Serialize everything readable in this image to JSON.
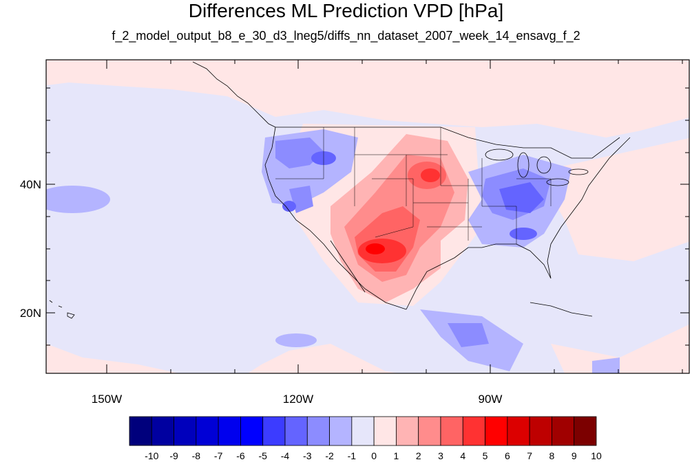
{
  "title": "Differences ML Prediction VPD [hPa]",
  "subtitle": "f_2_model_output_b8_e_30_d3_lneg5/diffs_nn_dataset_2007_week_14_ensavg_f_2",
  "map": {
    "lat_ticks": [
      "40N",
      "20N"
    ],
    "lon_ticks": [
      "150W",
      "120W",
      "90W"
    ],
    "background_color": "#e6e6fa",
    "extent": {
      "lon_min": -159.5,
      "lon_max": -61,
      "lat_min": 10,
      "lat_max": 59
    }
  },
  "colorbar": {
    "labels": [
      "-10",
      "-9",
      "-8",
      "-7",
      "-6",
      "-5",
      "-4",
      "-3",
      "-2",
      "-1",
      "0",
      "1",
      "2",
      "3",
      "4",
      "5",
      "6",
      "7",
      "8",
      "9",
      "10"
    ],
    "colors": [
      "#00007c",
      "#0000a0",
      "#0000bc",
      "#0000d6",
      "#0000ee",
      "#0000ff",
      "#3c3cff",
      "#6464ff",
      "#8c8cff",
      "#b4b4ff",
      "#e6e6fa",
      "#ffe6e6",
      "#ffb4b4",
      "#ff8c8c",
      "#ff6464",
      "#ff3232",
      "#ff0000",
      "#dc0000",
      "#be0000",
      "#a00000",
      "#7c0000"
    ]
  }
}
